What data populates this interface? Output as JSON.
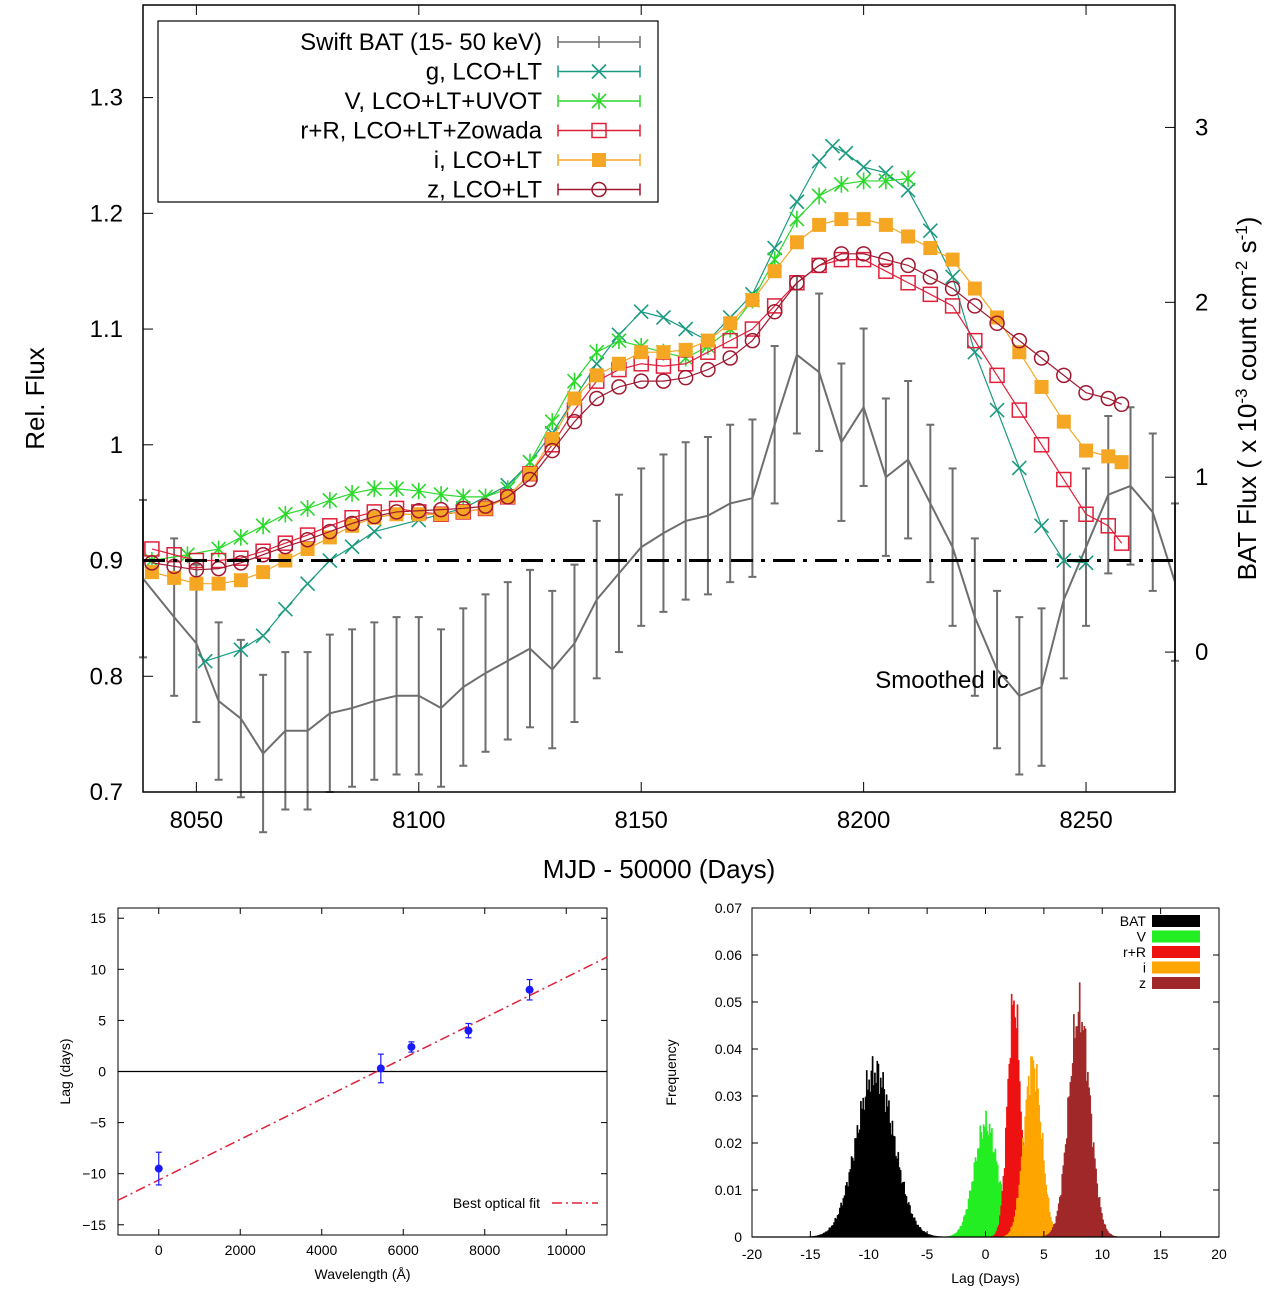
{
  "chart_data": [
    {
      "type": "line",
      "xlabel": "MJD - 50000 (Days)",
      "ylabel": "Rel. Flux",
      "y2label": "BAT Flux ( x 10^-3 count cm^-2 s^-1)",
      "xlim": [
        8038,
        8270
      ],
      "ylim": [
        0.7,
        1.38
      ],
      "y2lim": [
        -0.8,
        3.7
      ],
      "xticks": [
        8050,
        8100,
        8150,
        8200,
        8250
      ],
      "yticks": [
        0.7,
        0.8,
        0.9,
        1.0,
        1.1,
        1.2,
        1.3
      ],
      "ytick_labels": [
        "0.7",
        "0.8",
        "0.9",
        "1",
        "1.1",
        "1.2",
        "1.3"
      ],
      "y2ticks": [
        0,
        1,
        2,
        3
      ],
      "legend_position": "top-left",
      "annotation": "Smoothed lc",
      "reference_line": {
        "y": 0.9,
        "style": "dash-dot"
      },
      "series": [
        {
          "name": "Swift BAT (15- 50 keV)",
          "axis": "right",
          "marker": "errorbar",
          "color": "#6e6e6e",
          "x": [
            8038,
            8045,
            8050,
            8055,
            8060,
            8065,
            8070,
            8075,
            8080,
            8085,
            8090,
            8095,
            8100,
            8105,
            8110,
            8115,
            8120,
            8125,
            8130,
            8135,
            8140,
            8145,
            8150,
            8155,
            8160,
            8165,
            8170,
            8175,
            8180,
            8185,
            8190,
            8195,
            8200,
            8205,
            8210,
            8215,
            8220,
            8225,
            8230,
            8235,
            8240,
            8245,
            8250,
            8255,
            8260,
            8265,
            8270
          ],
          "y": [
            0.42,
            0.2,
            0.05,
            -0.28,
            -0.38,
            -0.58,
            -0.45,
            -0.45,
            -0.35,
            -0.32,
            -0.28,
            -0.25,
            -0.25,
            -0.32,
            -0.2,
            -0.12,
            -0.05,
            0.02,
            -0.1,
            0.05,
            0.3,
            0.45,
            0.6,
            0.68,
            0.75,
            0.78,
            0.85,
            0.88,
            1.3,
            1.7,
            1.6,
            1.2,
            1.4,
            1.0,
            1.1,
            0.85,
            0.6,
            0.2,
            -0.1,
            -0.25,
            -0.2,
            0.3,
            0.6,
            0.9,
            0.95,
            0.8,
            0.4
          ],
          "err": 0.45
        },
        {
          "name": "g, LCO+LT",
          "marker": "x",
          "color": "#1a9a80",
          "x": [
            8052,
            8060,
            8065,
            8070,
            8075,
            8080,
            8085,
            8090,
            8100,
            8110,
            8120,
            8125,
            8130,
            8135,
            8140,
            8145,
            8150,
            8155,
            8160,
            8165,
            8170,
            8175,
            8180,
            8185,
            8190,
            8193,
            8196,
            8200,
            8205,
            8210,
            8215,
            8220,
            8225,
            8230,
            8235,
            8240,
            8245,
            8250
          ],
          "y": [
            0.813,
            0.823,
            0.835,
            0.858,
            0.88,
            0.9,
            0.912,
            0.925,
            0.935,
            0.945,
            0.965,
            0.985,
            1.01,
            1.04,
            1.07,
            1.095,
            1.115,
            1.11,
            1.1,
            1.09,
            1.11,
            1.13,
            1.17,
            1.21,
            1.245,
            1.258,
            1.252,
            1.24,
            1.235,
            1.22,
            1.185,
            1.145,
            1.08,
            1.03,
            0.98,
            0.93,
            0.9,
            0.898
          ]
        },
        {
          "name": "V, LCO+LT+UVOT",
          "marker": "star",
          "color": "#2bd92b",
          "x": [
            8040,
            8048,
            8055,
            8060,
            8065,
            8070,
            8075,
            8080,
            8085,
            8090,
            8095,
            8100,
            8105,
            8110,
            8115,
            8120,
            8125,
            8130,
            8135,
            8140,
            8145,
            8150,
            8155,
            8160,
            8165,
            8170,
            8175,
            8180,
            8185,
            8190,
            8195,
            8200,
            8205,
            8210
          ],
          "y": [
            0.9,
            0.905,
            0.91,
            0.92,
            0.93,
            0.94,
            0.945,
            0.952,
            0.958,
            0.962,
            0.962,
            0.96,
            0.957,
            0.955,
            0.955,
            0.962,
            0.985,
            1.02,
            1.055,
            1.08,
            1.09,
            1.085,
            1.08,
            1.075,
            1.085,
            1.1,
            1.125,
            1.16,
            1.195,
            1.215,
            1.225,
            1.228,
            1.228,
            1.23
          ]
        },
        {
          "name": "r+R, LCO+LT+Zowada",
          "marker": "open-square",
          "color": "#e0203a",
          "x": [
            8040,
            8045,
            8050,
            8055,
            8060,
            8065,
            8070,
            8075,
            8080,
            8085,
            8090,
            8095,
            8100,
            8105,
            8110,
            8115,
            8120,
            8125,
            8130,
            8135,
            8140,
            8145,
            8150,
            8155,
            8160,
            8165,
            8170,
            8175,
            8180,
            8185,
            8190,
            8195,
            8200,
            8205,
            8210,
            8215,
            8220,
            8225,
            8230,
            8235,
            8240,
            8245,
            8250,
            8255,
            8258
          ],
          "y": [
            0.91,
            0.905,
            0.9,
            0.9,
            0.902,
            0.908,
            0.915,
            0.922,
            0.93,
            0.937,
            0.942,
            0.945,
            0.942,
            0.94,
            0.942,
            0.945,
            0.955,
            0.975,
            1.0,
            1.03,
            1.055,
            1.065,
            1.07,
            1.068,
            1.07,
            1.08,
            1.09,
            1.1,
            1.12,
            1.14,
            1.155,
            1.16,
            1.16,
            1.15,
            1.14,
            1.13,
            1.12,
            1.09,
            1.06,
            1.03,
            1.0,
            0.97,
            0.94,
            0.93,
            0.915
          ]
        },
        {
          "name": "i, LCO+LT",
          "marker": "filled-square",
          "color": "#f5a623",
          "x": [
            8040,
            8045,
            8050,
            8055,
            8060,
            8065,
            8070,
            8075,
            8080,
            8085,
            8090,
            8095,
            8100,
            8105,
            8110,
            8115,
            8120,
            8125,
            8130,
            8135,
            8140,
            8145,
            8150,
            8155,
            8160,
            8165,
            8170,
            8175,
            8180,
            8185,
            8190,
            8195,
            8200,
            8205,
            8210,
            8215,
            8220,
            8225,
            8230,
            8235,
            8240,
            8245,
            8250,
            8255,
            8258
          ],
          "y": [
            0.89,
            0.885,
            0.88,
            0.88,
            0.883,
            0.89,
            0.9,
            0.91,
            0.92,
            0.93,
            0.937,
            0.94,
            0.94,
            0.94,
            0.942,
            0.945,
            0.955,
            0.975,
            1.005,
            1.04,
            1.06,
            1.07,
            1.08,
            1.08,
            1.082,
            1.09,
            1.105,
            1.125,
            1.15,
            1.175,
            1.19,
            1.195,
            1.195,
            1.19,
            1.18,
            1.17,
            1.16,
            1.135,
            1.11,
            1.08,
            1.05,
            1.02,
            0.995,
            0.99,
            0.985
          ]
        },
        {
          "name": "z, LCO+LT",
          "marker": "open-circle",
          "color": "#a01830",
          "x": [
            8040,
            8045,
            8050,
            8055,
            8060,
            8065,
            8070,
            8075,
            8080,
            8085,
            8090,
            8095,
            8100,
            8105,
            8110,
            8115,
            8120,
            8125,
            8130,
            8135,
            8140,
            8145,
            8150,
            8155,
            8160,
            8165,
            8170,
            8175,
            8180,
            8185,
            8190,
            8195,
            8200,
            8205,
            8210,
            8215,
            8220,
            8225,
            8230,
            8235,
            8240,
            8245,
            8250,
            8255,
            8258
          ],
          "y": [
            0.898,
            0.895,
            0.892,
            0.893,
            0.898,
            0.905,
            0.912,
            0.918,
            0.925,
            0.932,
            0.938,
            0.942,
            0.943,
            0.944,
            0.945,
            0.947,
            0.955,
            0.97,
            0.995,
            1.02,
            1.04,
            1.05,
            1.055,
            1.055,
            1.058,
            1.065,
            1.075,
            1.09,
            1.115,
            1.14,
            1.155,
            1.165,
            1.165,
            1.16,
            1.155,
            1.145,
            1.135,
            1.12,
            1.105,
            1.09,
            1.075,
            1.06,
            1.045,
            1.04,
            1.035
          ]
        }
      ]
    },
    {
      "type": "scatter",
      "xlabel": "Wavelength (Å)",
      "ylabel": "Lag (days)",
      "xlim": [
        -1000,
        11000
      ],
      "ylim": [
        -16,
        16
      ],
      "xticks": [
        0,
        2000,
        4000,
        6000,
        8000,
        10000
      ],
      "yticks": [
        -15,
        -10,
        -5,
        0,
        5,
        10,
        15
      ],
      "legend_position": "bottom-right",
      "points": {
        "color": "#1a1aff",
        "x": [
          0,
          5450,
          6200,
          7600,
          9100
        ],
        "y": [
          -9.5,
          0.3,
          2.4,
          4.0,
          8.0
        ],
        "err": [
          1.6,
          1.4,
          0.5,
          0.7,
          1.0
        ]
      },
      "fit": {
        "name": "Best optical fit",
        "color": "#e0203a",
        "style": "dash-dot",
        "x": [
          -1000,
          11000
        ],
        "y": [
          -12.6,
          11.2
        ]
      },
      "zero_line": 0
    },
    {
      "type": "bar",
      "xlabel": "Lag (Days)",
      "ylabel": "Frequency",
      "xlim": [
        -20,
        20
      ],
      "ylim": [
        0,
        0.07
      ],
      "xticks": [
        -20,
        -15,
        -10,
        -5,
        0,
        5,
        10,
        15,
        20
      ],
      "yticks": [
        0,
        0.01,
        0.02,
        0.03,
        0.04,
        0.05,
        0.06,
        0.07
      ],
      "legend_position": "top-right",
      "series": [
        {
          "name": "BAT",
          "color": "#000000",
          "center": -9.5,
          "sigma": 1.6,
          "peak": 0.035
        },
        {
          "name": "V",
          "color": "#22ee22",
          "center": 0.0,
          "sigma": 1.0,
          "peak": 0.024
        },
        {
          "name": "r+R",
          "color": "#ee1111",
          "center": 2.4,
          "sigma": 0.55,
          "peak": 0.05
        },
        {
          "name": "i",
          "color": "#ffa500",
          "center": 4.0,
          "sigma": 0.75,
          "peak": 0.037
        },
        {
          "name": "z",
          "color": "#a02828",
          "center": 8.0,
          "sigma": 0.9,
          "peak": 0.048
        }
      ]
    }
  ]
}
